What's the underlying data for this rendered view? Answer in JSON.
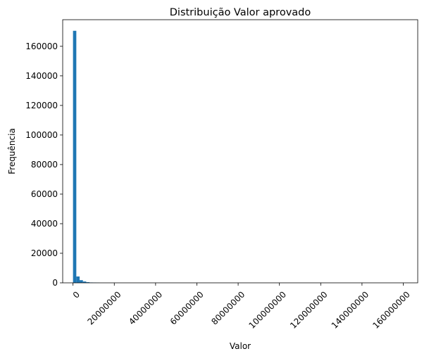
{
  "chart_data": {
    "type": "bar",
    "title": "Distribuição Valor aprovado",
    "xlabel": "Valor",
    "ylabel": "Frequência",
    "xlim": [
      -5000000,
      167000000
    ],
    "ylim": [
      0,
      178000
    ],
    "bin_width": 1600000,
    "bins": [
      {
        "x0": 0,
        "x1": 1600000,
        "value": 170500
      },
      {
        "x0": 1600000,
        "x1": 3200000,
        "value": 4300
      },
      {
        "x0": 3200000,
        "x1": 4800000,
        "value": 1800
      },
      {
        "x0": 4800000,
        "x1": 6400000,
        "value": 900
      },
      {
        "x0": 6400000,
        "x1": 8000000,
        "value": 450
      },
      {
        "x0": 8000000,
        "x1": 9600000,
        "value": 250
      },
      {
        "x0": 9600000,
        "x1": 11200000,
        "value": 150
      },
      {
        "x0": 11200000,
        "x1": 12800000,
        "value": 90
      }
    ],
    "x_ticks": [
      0,
      20000000,
      40000000,
      60000000,
      80000000,
      100000000,
      120000000,
      140000000,
      160000000
    ],
    "x_tick_labels": [
      "0",
      "20000000",
      "40000000",
      "60000000",
      "80000000",
      "100000000",
      "120000000",
      "140000000",
      "160000000"
    ],
    "y_ticks": [
      0,
      20000,
      40000,
      60000,
      80000,
      100000,
      120000,
      140000,
      160000
    ],
    "y_tick_labels": [
      "0",
      "20000",
      "40000",
      "60000",
      "80000",
      "100000",
      "120000",
      "140000",
      "160000"
    ],
    "bar_color": "#1f77b4",
    "grid": false,
    "legend": "none"
  }
}
